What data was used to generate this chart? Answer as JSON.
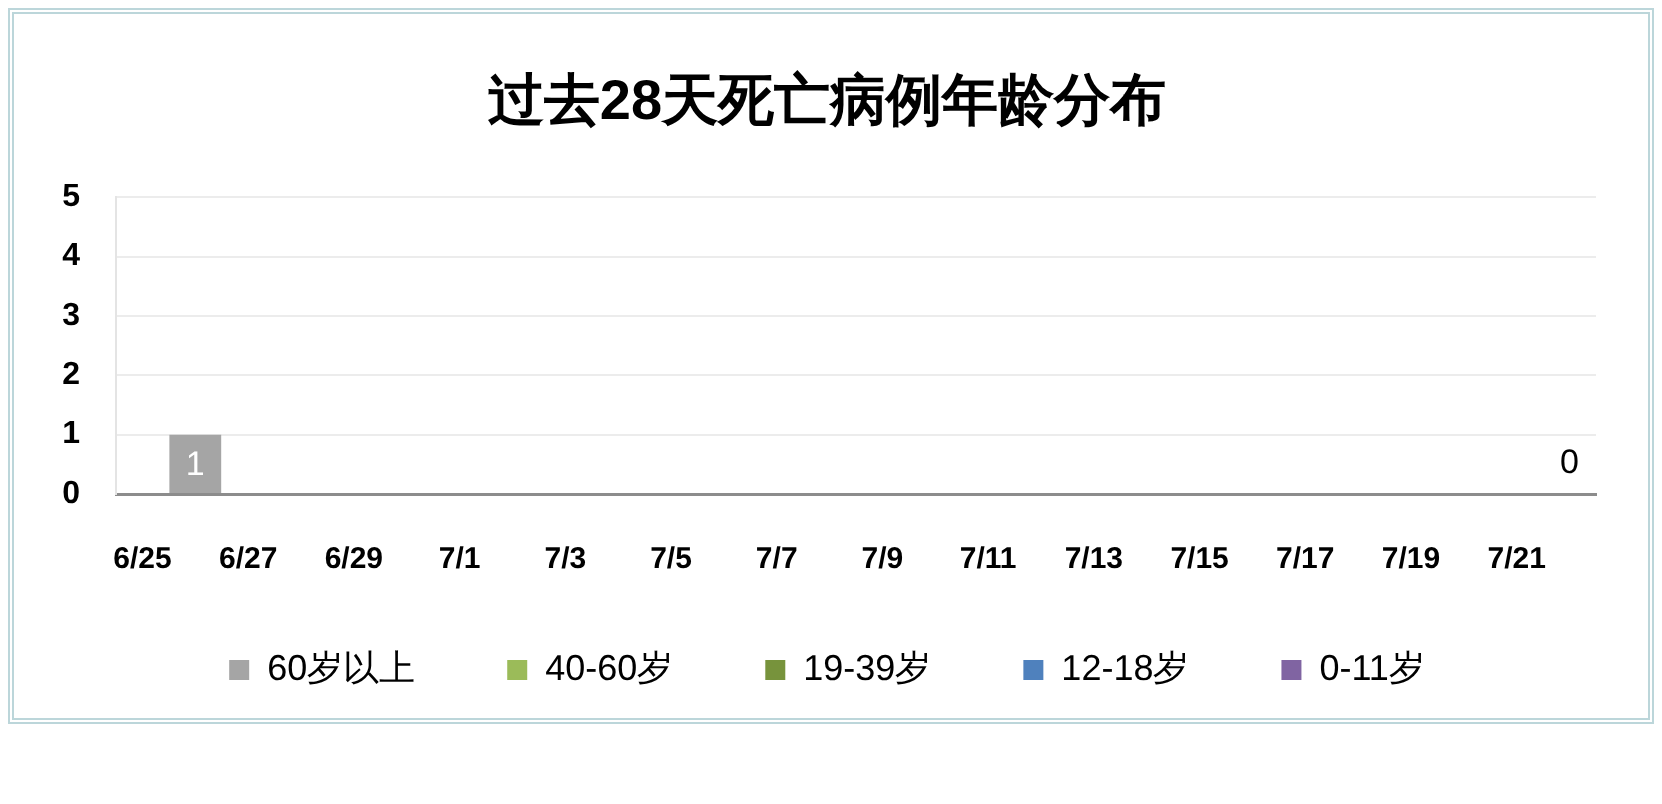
{
  "chart_data": {
    "type": "bar",
    "title": "过去28天死亡病例年龄分布",
    "categories": [
      "6/25",
      null,
      "6/27",
      null,
      "6/29",
      null,
      "7/1",
      null,
      "7/3",
      null,
      "7/5",
      null,
      "7/7",
      null,
      "7/9",
      null,
      "7/11",
      null,
      "7/13",
      null,
      "7/15",
      null,
      "7/17",
      null,
      "7/19",
      null,
      "7/21",
      null
    ],
    "stacked": true,
    "ylim": [
      0,
      5
    ],
    "yticks": [
      0,
      1,
      2,
      3,
      4,
      5
    ],
    "grid": "y",
    "legend": "bottom",
    "series": [
      {
        "name": "60岁以上",
        "color": "#a5a5a5",
        "values": [
          0,
          1,
          0,
          0,
          0,
          0,
          0,
          0,
          0,
          0,
          0,
          0,
          0,
          0,
          0,
          0,
          0,
          0,
          0,
          0,
          0,
          0,
          0,
          0,
          0,
          0,
          0,
          0
        ],
        "value_labels": [
          null,
          "1",
          null,
          null,
          null,
          null,
          null,
          null,
          null,
          null,
          null,
          null,
          null,
          null,
          null,
          null,
          null,
          null,
          null,
          null,
          null,
          null,
          null,
          null,
          null,
          null,
          null,
          "0"
        ]
      },
      {
        "name": "40-60岁",
        "color": "#9bbb59",
        "values": [
          0,
          0,
          0,
          0,
          0,
          0,
          0,
          0,
          0,
          0,
          0,
          0,
          0,
          0,
          0,
          0,
          0,
          0,
          0,
          0,
          0,
          0,
          0,
          0,
          0,
          0,
          0,
          0
        ]
      },
      {
        "name": "19-39岁",
        "color": "#77933c",
        "values": [
          0,
          0,
          0,
          0,
          0,
          0,
          0,
          0,
          0,
          0,
          0,
          0,
          0,
          0,
          0,
          0,
          0,
          0,
          0,
          0,
          0,
          0,
          0,
          0,
          0,
          0,
          0,
          0
        ]
      },
      {
        "name": "12-18岁",
        "color": "#4f81bd",
        "values": [
          0,
          0,
          0,
          0,
          0,
          0,
          0,
          0,
          0,
          0,
          0,
          0,
          0,
          0,
          0,
          0,
          0,
          0,
          0,
          0,
          0,
          0,
          0,
          0,
          0,
          0,
          0,
          0
        ]
      },
      {
        "name": "0-11岁",
        "color": "#8064a2",
        "values": [
          0,
          0,
          0,
          0,
          0,
          0,
          0,
          0,
          0,
          0,
          0,
          0,
          0,
          0,
          0,
          0,
          0,
          0,
          0,
          0,
          0,
          0,
          0,
          0,
          0,
          0,
          0,
          0
        ]
      }
    ]
  }
}
